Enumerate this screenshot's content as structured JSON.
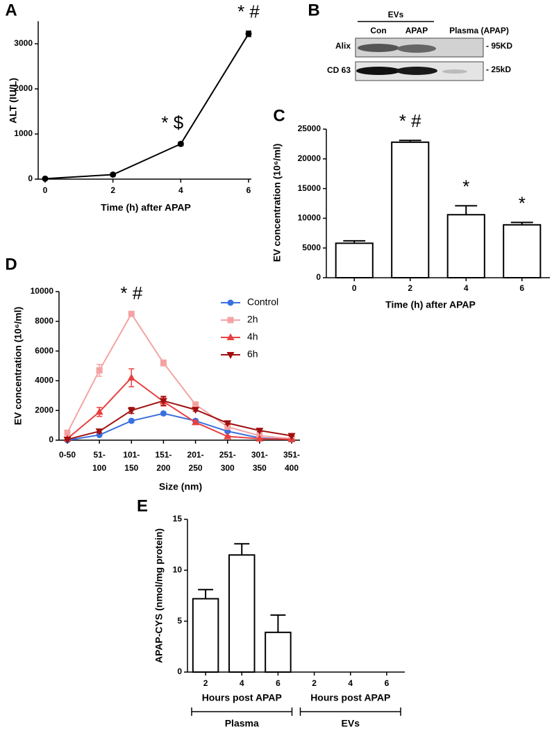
{
  "chart_data": [
    {
      "type": "line",
      "panel": "A",
      "x_label": "Time (h) after APAP",
      "y_label": "ALT (IU/L)",
      "x": [
        0,
        2,
        4,
        6
      ],
      "xlim": [
        0,
        6
      ],
      "xticks": [
        0,
        2,
        4,
        6
      ],
      "series": [
        {
          "color": "#000000",
          "marker": "circle",
          "values": [
            10,
            100,
            780,
            3220
          ],
          "errors": [
            20,
            30,
            40,
            60
          ]
        }
      ],
      "ylim": [
        0,
        3500
      ],
      "yticks": [
        0,
        1000,
        2000,
        3000
      ],
      "annotations": [
        {
          "text": "* $",
          "x": 4
        },
        {
          "text": "* #",
          "x": 6
        }
      ]
    },
    {
      "type": "bar",
      "panel": "C",
      "x_label": "Time (h) after APAP",
      "y_label": "EV concentration (10⁶/ml)",
      "categories": [
        "0",
        "2",
        "4",
        "6"
      ],
      "values": [
        5800,
        22800,
        10600,
        8900
      ],
      "errors": [
        400,
        300,
        1500,
        400
      ],
      "color": "#ffffff",
      "ylim": [
        0,
        25000
      ],
      "yticks": [
        0,
        5000,
        10000,
        15000,
        20000,
        25000
      ],
      "annotations": [
        {
          "text": "* #",
          "x": "2"
        },
        {
          "text": "*",
          "x": "4"
        },
        {
          "text": "*",
          "x": "6"
        }
      ]
    },
    {
      "type": "line",
      "panel": "D",
      "x_label": "Size (nm)",
      "y_label": "EV concentration (10⁶/ml)",
      "categories": [
        "0-50",
        "51-100",
        "101-150",
        "151-200",
        "201-250",
        "251-300",
        "301-350",
        "351-400"
      ],
      "series": [
        {
          "name": "Control",
          "color": "#3a6fe0",
          "marker": "circle",
          "values": [
            0,
            350,
            1300,
            1800,
            1300,
            600,
            150,
            50
          ],
          "errors": [
            0,
            50,
            100,
            100,
            100,
            100,
            50,
            20
          ]
        },
        {
          "name": "2h",
          "color": "#f4a3a3",
          "marker": "square",
          "values": [
            500,
            4700,
            8500,
            5200,
            2400,
            900,
            300,
            100
          ],
          "errors": [
            100,
            400,
            100,
            200,
            150,
            100,
            50,
            20
          ]
        },
        {
          "name": "4h",
          "color": "#e8403f",
          "marker": "triangle-up",
          "values": [
            100,
            1900,
            4200,
            2600,
            1200,
            250,
            100,
            50
          ],
          "errors": [
            50,
            300,
            600,
            300,
            100,
            50,
            30,
            20
          ]
        },
        {
          "name": "6h",
          "color": "#a01010",
          "marker": "triangle-down",
          "values": [
            50,
            600,
            2000,
            2650,
            2050,
            1150,
            650,
            300
          ],
          "errors": [
            30,
            100,
            200,
            300,
            100,
            80,
            80,
            40
          ]
        }
      ],
      "ylim": [
        0,
        10000
      ],
      "yticks": [
        0,
        2000,
        4000,
        6000,
        8000,
        10000
      ],
      "annotations": [
        {
          "text": "* #",
          "x": "101-150"
        }
      ]
    },
    {
      "type": "bar",
      "panel": "E",
      "y_label": "APAP-CYS (nmol/mg protein)",
      "categories": [
        "2",
        "4",
        "6",
        "2",
        "4",
        "6"
      ],
      "values": [
        7.2,
        11.5,
        3.9,
        0,
        0,
        0
      ],
      "errors": [
        0.9,
        1.1,
        1.7,
        null,
        null,
        null
      ],
      "color": "#ffffff",
      "ylim": [
        0,
        15
      ],
      "yticks": [
        0,
        5,
        10,
        15
      ],
      "groups": [
        {
          "label": "Hours post APAP",
          "name": "Plasma"
        },
        {
          "label": "Hours post APAP",
          "name": "EVs"
        }
      ]
    }
  ],
  "blot": {
    "panel": "B",
    "header": "EVs",
    "columns": [
      "Con",
      "APAP",
      "Plasma (APAP)"
    ],
    "rows": [
      "Alix",
      "CD 63"
    ],
    "markers": [
      "- 95KD",
      "- 25kD"
    ]
  }
}
